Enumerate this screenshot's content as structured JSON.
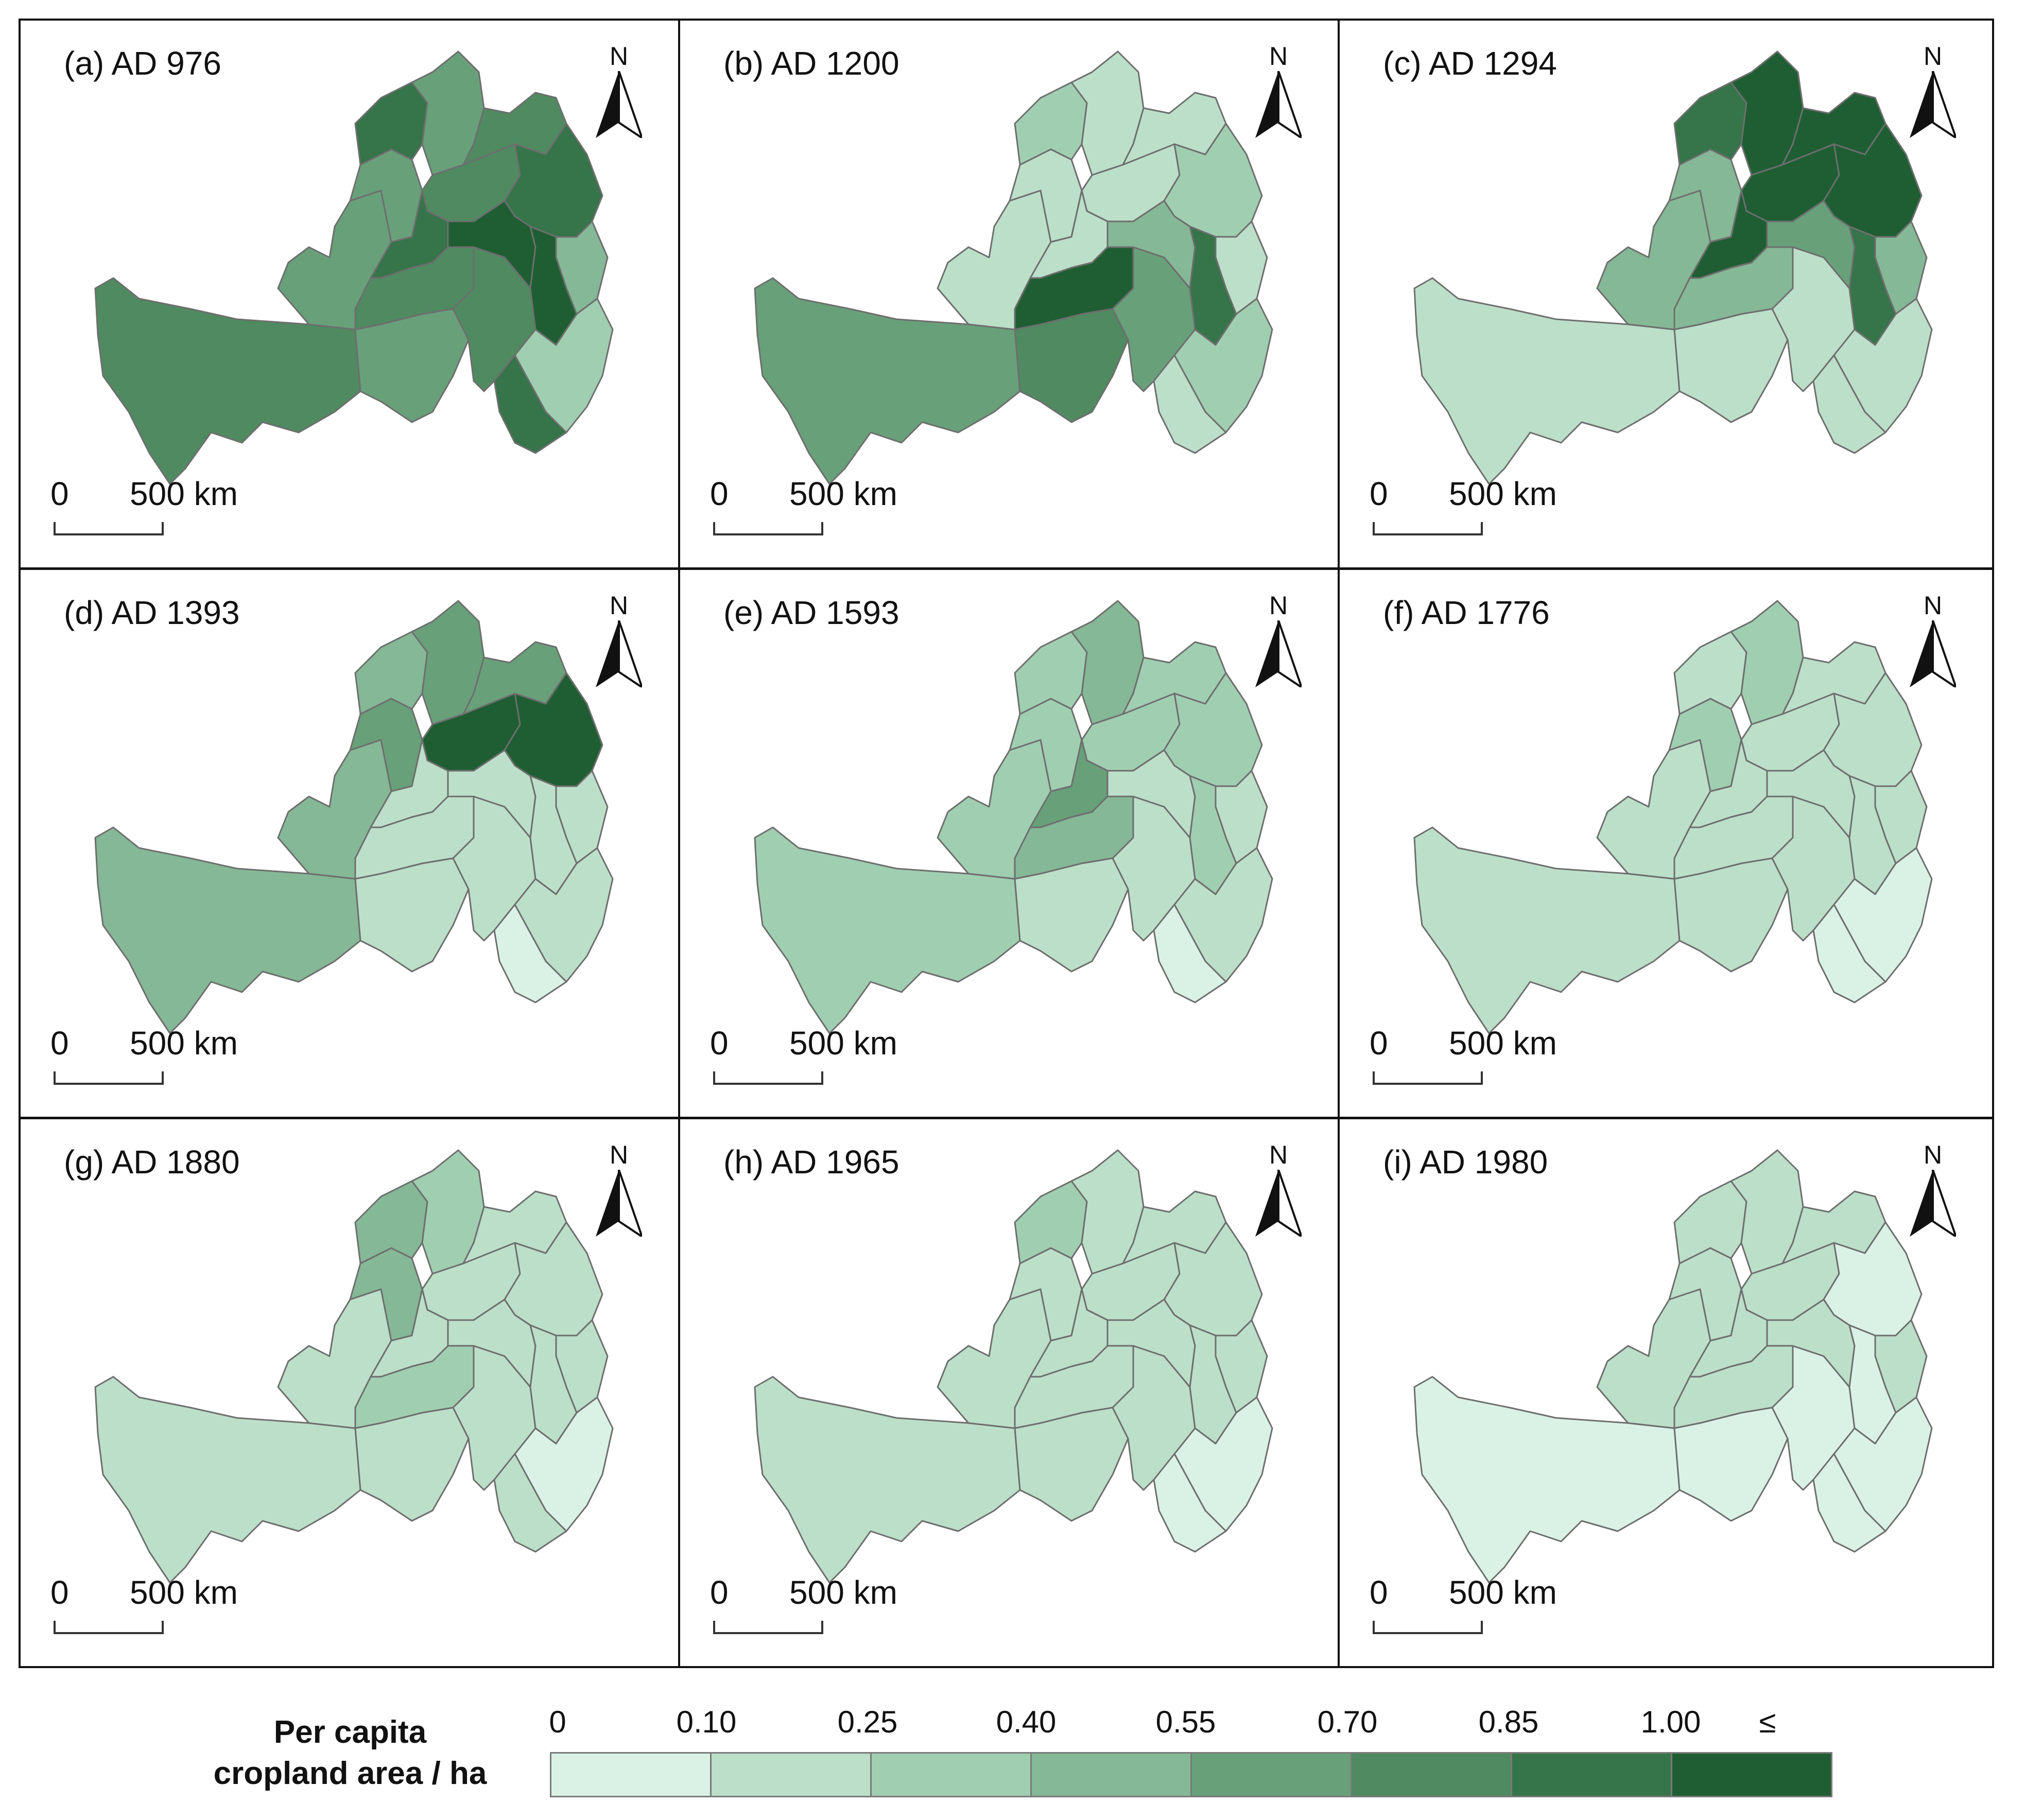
{
  "legend": {
    "title_line1": "Per capita",
    "title_line2": "cropland area / ha",
    "ticks": [
      "0",
      "0.10",
      "0.25",
      "0.40",
      "0.55",
      "0.70",
      "0.85",
      "1.00",
      "≤"
    ],
    "colors": [
      "#daf2e6",
      "#bcdfc9",
      "#a0ceb1",
      "#85b896",
      "#68a07a",
      "#4f8a61",
      "#36744a",
      "#1f5e33"
    ]
  },
  "north_letter": "N",
  "scale": {
    "zero": "0",
    "label": "500 km"
  },
  "panels": [
    {
      "label": "(a) AD 976",
      "classes": [
        5,
        4,
        4,
        6,
        4,
        5,
        5,
        6,
        6,
        5,
        4,
        5,
        3,
        7,
        7,
        2,
        6
      ]
    },
    {
      "label": "(b) AD 1200",
      "classes": [
        4,
        1,
        1,
        2,
        1,
        1,
        1,
        2,
        1,
        7,
        5,
        4,
        1,
        3,
        6,
        2,
        1
      ]
    },
    {
      "label": "(c) AD 1294",
      "classes": [
        1,
        3,
        3,
        6,
        7,
        7,
        7,
        7,
        7,
        3,
        1,
        1,
        3,
        4,
        6,
        1,
        1
      ]
    },
    {
      "label": "(d) AD 1393",
      "classes": [
        3,
        3,
        4,
        3,
        4,
        7,
        4,
        7,
        1,
        1,
        1,
        1,
        1,
        1,
        1,
        1,
        0
      ]
    },
    {
      "label": "(e) AD 1593",
      "classes": [
        2,
        2,
        2,
        2,
        3,
        2,
        2,
        2,
        4,
        3,
        1,
        1,
        1,
        1,
        2,
        1,
        0
      ]
    },
    {
      "label": "(f) AD 1776",
      "classes": [
        1,
        1,
        2,
        1,
        2,
        1,
        1,
        1,
        1,
        1,
        1,
        1,
        1,
        1,
        1,
        0,
        0
      ]
    },
    {
      "label": "(g) AD 1880",
      "classes": [
        1,
        1,
        3,
        3,
        2,
        1,
        1,
        1,
        1,
        2,
        1,
        1,
        1,
        1,
        1,
        0,
        1
      ]
    },
    {
      "label": "(h) AD 1965",
      "classes": [
        1,
        1,
        1,
        2,
        1,
        1,
        1,
        1,
        1,
        1,
        1,
        1,
        1,
        1,
        1,
        0,
        0
      ]
    },
    {
      "label": "(i) AD 1980",
      "classes": [
        0,
        1,
        1,
        1,
        1,
        1,
        1,
        0,
        1,
        1,
        0,
        0,
        1,
        1,
        0,
        0,
        0
      ]
    }
  ]
}
